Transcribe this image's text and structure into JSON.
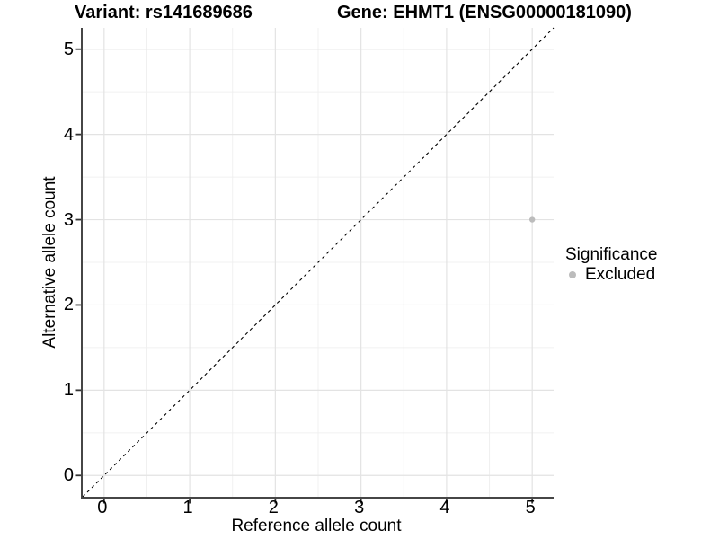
{
  "title": {
    "variant": "Variant: rs141689686",
    "gene": "Gene: EHMT1 (ENSG00000181090)"
  },
  "chart_data": {
    "type": "scatter",
    "title": "Variant: rs141689686   Gene: EHMT1 (ENSG00000181090)",
    "xlabel": "Reference allele count",
    "ylabel": "Alternative allele count",
    "xlim": [
      -0.25,
      5.25
    ],
    "ylim": [
      -0.25,
      5.25
    ],
    "xticks": [
      0,
      1,
      2,
      3,
      4,
      5
    ],
    "yticks": [
      0,
      1,
      2,
      3,
      4,
      5
    ],
    "minor_gridlines": [
      0.5,
      1.5,
      2.5,
      3.5,
      4.5
    ],
    "grid": "on",
    "series": [
      {
        "name": "Excluded",
        "marker": "circle",
        "color": "#bcbcbc",
        "points": [
          {
            "x": 5,
            "y": 3
          }
        ]
      }
    ],
    "identity_line": {
      "equation": "y = x",
      "style": "dashed",
      "color": "#000000",
      "from": [
        -0.25,
        -0.25
      ],
      "to": [
        5.25,
        5.25
      ]
    },
    "legend": {
      "title": "Significance",
      "position": "right",
      "entries": [
        {
          "label": "Excluded",
          "color": "#bcbcbc",
          "marker": "circle"
        }
      ]
    }
  },
  "colors": {
    "background": "#ffffff",
    "axis_line": "#464646",
    "tick_mark": "#333333",
    "major_grid": "#e3e3e3",
    "minor_grid": "#f0f0f0",
    "point": "#bcbcbc",
    "dashed_line": "#000000",
    "text": "#000000"
  }
}
